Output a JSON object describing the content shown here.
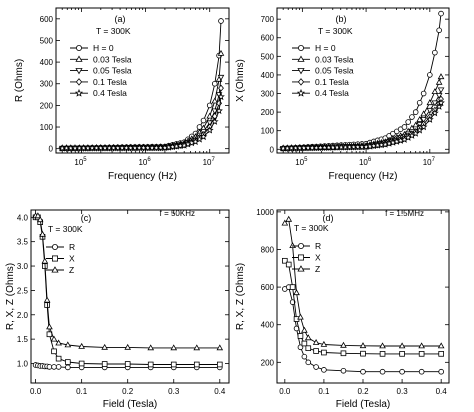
{
  "chart_data": [
    {
      "type": "line",
      "panel_label": "(a)",
      "xscale": "log",
      "xlim": [
        40000,
        20000000
      ],
      "ylim": [
        -20,
        650
      ],
      "ylabel": "R (Ohms)",
      "xlabel": "Frequency (Hz)",
      "temperature": "T = 300K",
      "legend_position": "top-left",
      "xticks": [
        {
          "v": 100000,
          "base": "10",
          "exp": "5"
        },
        {
          "v": 1000000,
          "base": "10",
          "exp": "6"
        },
        {
          "v": 10000000,
          "base": "10",
          "exp": "7"
        }
      ],
      "yticks": [
        0,
        100,
        200,
        300,
        400,
        500,
        600
      ],
      "series": [
        {
          "name": "H = 0",
          "marker": "circle",
          "x": [
            50000,
            2000000,
            4000000,
            6000000,
            8000000,
            10000000,
            12000000,
            14000000,
            15000000
          ],
          "y": [
            2,
            10,
            30,
            70,
            130,
            200,
            300,
            430,
            590
          ]
        },
        {
          "name": "0.03 Tesla",
          "marker": "triangle-up",
          "x": [
            50000,
            2000000,
            4000000,
            6000000,
            8000000,
            10000000,
            12000000,
            14000000,
            15000000
          ],
          "y": [
            2,
            8,
            25,
            55,
            95,
            150,
            220,
            320,
            440
          ]
        },
        {
          "name": "0.05 Tesla",
          "marker": "triangle-down",
          "x": [
            50000,
            2000000,
            4000000,
            6000000,
            8000000,
            10000000,
            12000000,
            14000000,
            15000000
          ],
          "y": [
            2,
            6,
            20,
            45,
            80,
            120,
            175,
            250,
            330
          ]
        },
        {
          "name": "0.1 Tesla",
          "marker": "diamond",
          "x": [
            50000,
            2000000,
            4000000,
            6000000,
            8000000,
            10000000,
            12000000,
            14000000,
            15000000
          ],
          "y": [
            2,
            5,
            18,
            38,
            65,
            100,
            150,
            210,
            280
          ]
        },
        {
          "name": "0.4 Tesla",
          "marker": "star",
          "x": [
            50000,
            2000000,
            4000000,
            6000000,
            8000000,
            10000000,
            12000000,
            14000000,
            15000000
          ],
          "y": [
            2,
            4,
            15,
            32,
            55,
            85,
            125,
            175,
            240
          ]
        }
      ]
    },
    {
      "type": "line",
      "panel_label": "(b)",
      "xscale": "log",
      "xlim": [
        40000,
        20000000
      ],
      "ylim": [
        -20,
        760
      ],
      "ylabel": "X (Ohms)",
      "xlabel": "Frequency (Hz)",
      "temperature": "T = 300K",
      "legend_position": "top-left",
      "xticks": [
        {
          "v": 100000,
          "base": "10",
          "exp": "5"
        },
        {
          "v": 1000000,
          "base": "10",
          "exp": "6"
        },
        {
          "v": 10000000,
          "base": "10",
          "exp": "7"
        }
      ],
      "yticks": [
        0,
        100,
        200,
        300,
        400,
        500,
        600,
        700
      ],
      "series": [
        {
          "name": "H = 0",
          "marker": "circle",
          "x": [
            50000,
            1000000,
            2000000,
            4000000,
            6000000,
            8000000,
            10000000,
            12000000,
            14000000,
            15000000
          ],
          "y": [
            5,
            30,
            60,
            120,
            200,
            300,
            400,
            520,
            640,
            730
          ]
        },
        {
          "name": "0.03 Tesla",
          "marker": "triangle-up",
          "x": [
            50000,
            1000000,
            2000000,
            4000000,
            6000000,
            8000000,
            10000000,
            12000000,
            14000000,
            15000000
          ],
          "y": [
            5,
            20,
            40,
            80,
            130,
            190,
            250,
            310,
            360,
            390
          ]
        },
        {
          "name": "0.05 Tesla",
          "marker": "triangle-down",
          "x": [
            50000,
            1000000,
            2000000,
            4000000,
            6000000,
            8000000,
            10000000,
            12000000,
            14000000,
            15000000
          ],
          "y": [
            5,
            18,
            35,
            70,
            110,
            160,
            210,
            250,
            290,
            320
          ]
        },
        {
          "name": "0.1 Tesla",
          "marker": "diamond",
          "x": [
            50000,
            1000000,
            2000000,
            4000000,
            6000000,
            8000000,
            10000000,
            12000000,
            14000000,
            15000000
          ],
          "y": [
            5,
            15,
            30,
            60,
            95,
            135,
            175,
            210,
            245,
            270
          ]
        },
        {
          "name": "0.4 Tesla",
          "marker": "star",
          "x": [
            50000,
            1000000,
            2000000,
            4000000,
            6000000,
            8000000,
            10000000,
            12000000,
            14000000,
            15000000
          ],
          "y": [
            5,
            13,
            26,
            52,
            85,
            120,
            160,
            195,
            230,
            250
          ]
        }
      ]
    },
    {
      "type": "line",
      "panel_label": "(c)",
      "xscale": "linear",
      "xlim": [
        -0.01,
        0.42
      ],
      "ylim": [
        0.6,
        4.15
      ],
      "ylabel": "R, X, Z (Ohms)",
      "xlabel": "Field (Tesla)",
      "temperature": "T = 300K",
      "frequency": "f = 50KHz",
      "legend_position": "top-left",
      "xticks": [
        "0.0",
        "0.1",
        "0.2",
        "0.3",
        "0.4"
      ],
      "xtick_values": [
        0,
        0.1,
        0.2,
        0.3,
        0.4
      ],
      "yticks": [
        "1.0",
        "1.5",
        "2.0",
        "2.5",
        "3.0",
        "3.5",
        "4.0"
      ],
      "ytick_values": [
        1.0,
        1.5,
        2.0,
        2.5,
        3.0,
        3.5,
        4.0
      ],
      "series": [
        {
          "name": "R",
          "marker": "circle",
          "x": [
            0,
            0.005,
            0.01,
            0.015,
            0.02,
            0.025,
            0.03,
            0.04,
            0.05,
            0.07,
            0.1,
            0.15,
            0.2,
            0.25,
            0.3,
            0.35,
            0.4
          ],
          "y": [
            0.97,
            0.96,
            0.95,
            0.95,
            0.94,
            0.94,
            0.93,
            0.93,
            0.93,
            0.92,
            0.92,
            0.92,
            0.92,
            0.92,
            0.92,
            0.92,
            0.92
          ]
        },
        {
          "name": "X",
          "marker": "square",
          "x": [
            0,
            0.005,
            0.01,
            0.015,
            0.02,
            0.025,
            0.03,
            0.04,
            0.05,
            0.07,
            0.1,
            0.15,
            0.2,
            0.25,
            0.3,
            0.35,
            0.4
          ],
          "y": [
            4.0,
            4.0,
            3.9,
            3.6,
            3.0,
            2.2,
            1.6,
            1.25,
            1.1,
            1.03,
            1.0,
            0.99,
            0.99,
            0.98,
            0.98,
            0.98,
            0.98
          ]
        },
        {
          "name": "Z",
          "marker": "triangle-up",
          "x": [
            0,
            0.005,
            0.01,
            0.015,
            0.02,
            0.025,
            0.03,
            0.04,
            0.05,
            0.07,
            0.1,
            0.15,
            0.2,
            0.25,
            0.3,
            0.35,
            0.4
          ],
          "y": [
            4.03,
            4.03,
            3.95,
            3.65,
            3.1,
            2.3,
            1.75,
            1.5,
            1.42,
            1.38,
            1.35,
            1.33,
            1.33,
            1.32,
            1.32,
            1.32,
            1.32
          ]
        }
      ]
    },
    {
      "type": "line",
      "panel_label": "(d)",
      "xscale": "linear",
      "xlim": [
        -0.02,
        0.42
      ],
      "ylim": [
        90,
        1010
      ],
      "ylabel": "R, X, Z (Ohms)",
      "xlabel": "Field (Tesla)",
      "temperature": "T = 300K",
      "frequency": "f = 1.5MHz",
      "legend_position": "top-left",
      "xticks": [
        "0.0",
        "0.1",
        "0.2",
        "0.3",
        "0.4"
      ],
      "xtick_values": [
        0,
        0.1,
        0.2,
        0.3,
        0.4
      ],
      "yticks": [
        "200",
        "400",
        "600",
        "800",
        "1000"
      ],
      "ytick_values": [
        200,
        400,
        600,
        800,
        1000
      ],
      "series": [
        {
          "name": "R",
          "marker": "circle",
          "x": [
            0,
            0.01,
            0.02,
            0.03,
            0.04,
            0.05,
            0.06,
            0.08,
            0.1,
            0.15,
            0.2,
            0.25,
            0.3,
            0.35,
            0.4
          ],
          "y": [
            590,
            600,
            520,
            380,
            280,
            230,
            200,
            175,
            160,
            155,
            150,
            150,
            150,
            150,
            150
          ]
        },
        {
          "name": "X",
          "marker": "square",
          "x": [
            0,
            0.01,
            0.02,
            0.03,
            0.04,
            0.05,
            0.06,
            0.08,
            0.1,
            0.15,
            0.2,
            0.25,
            0.3,
            0.35,
            0.4
          ],
          "y": [
            740,
            720,
            600,
            430,
            340,
            300,
            275,
            260,
            252,
            248,
            246,
            245,
            245,
            245,
            245
          ]
        },
        {
          "name": "Z",
          "marker": "triangle-up",
          "x": [
            0,
            0.01,
            0.02,
            0.03,
            0.04,
            0.05,
            0.06,
            0.08,
            0.1,
            0.15,
            0.2,
            0.25,
            0.3,
            0.35,
            0.4
          ],
          "y": [
            940,
            960,
            820,
            570,
            440,
            370,
            330,
            305,
            295,
            290,
            288,
            287,
            287,
            287,
            287
          ]
        }
      ]
    }
  ]
}
